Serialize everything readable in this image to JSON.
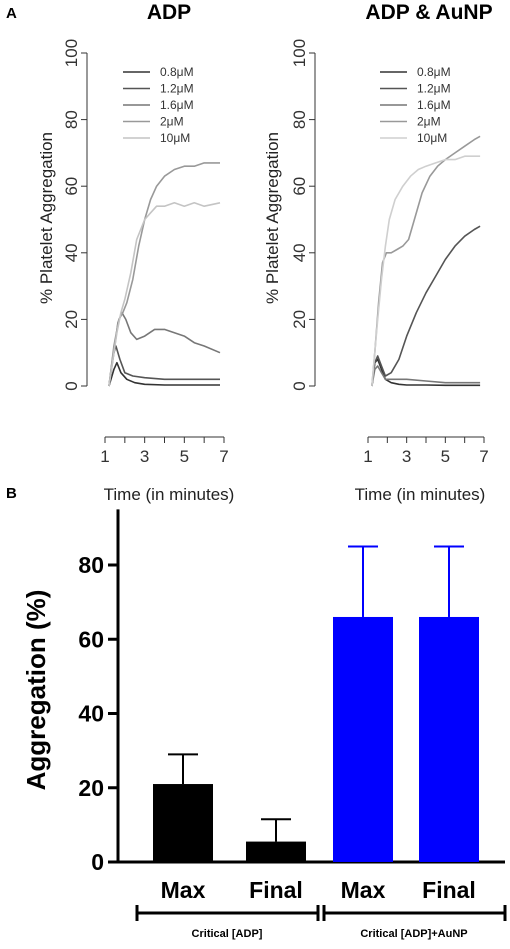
{
  "panels": {
    "a": "A",
    "b": "B"
  },
  "chart_data": [
    {
      "type": "line",
      "title": "ADP",
      "xlabel": "Time (in minutes)",
      "ylabel": "% Platelet Aggregation",
      "xlim": [
        1,
        7
      ],
      "ylim": [
        0,
        100
      ],
      "xticks": [
        "1",
        "3",
        "5",
        "7"
      ],
      "yticks": [
        "0",
        "20",
        "40",
        "60",
        "80",
        "100"
      ],
      "legend_position": "top-left",
      "series": [
        {
          "name": "0.8μM",
          "color": "#333333",
          "x": [
            1.2,
            1.45,
            1.6,
            1.8,
            2.1,
            2.5,
            3,
            4,
            5,
            6,
            6.8
          ],
          "y": [
            0,
            5,
            7,
            4,
            2,
            1,
            0.5,
            0.3,
            0.3,
            0.3,
            0.3
          ]
        },
        {
          "name": "1.2μM",
          "color": "#555555",
          "x": [
            1.2,
            1.4,
            1.55,
            1.75,
            2,
            2.4,
            3,
            4,
            5,
            6,
            6.8
          ],
          "y": [
            0,
            9,
            12,
            8,
            4,
            3,
            2.5,
            2,
            2,
            2,
            2
          ]
        },
        {
          "name": "1.6μM",
          "color": "#777777",
          "x": [
            1.2,
            1.45,
            1.65,
            1.85,
            2.05,
            2.3,
            2.6,
            3,
            3.5,
            4,
            4.5,
            5,
            5.5,
            6,
            6.8
          ],
          "y": [
            0,
            10,
            19,
            22,
            20,
            16,
            14,
            15,
            17,
            17,
            16,
            15,
            13,
            12,
            10
          ]
        },
        {
          "name": "2μM",
          "color": "#999999",
          "x": [
            1.2,
            1.45,
            1.7,
            1.9,
            2.1,
            2.4,
            2.7,
            3,
            3.3,
            3.6,
            4,
            4.5,
            5,
            5.5,
            6,
            6.8
          ],
          "y": [
            0,
            12,
            20,
            22,
            25,
            32,
            42,
            50,
            56,
            60,
            63,
            65,
            66,
            66,
            67,
            67
          ]
        },
        {
          "name": "10μM",
          "color": "#c4c4c4",
          "x": [
            1.2,
            1.4,
            1.6,
            1.8,
            2,
            2.3,
            2.6,
            3,
            3.3,
            3.6,
            4,
            4.5,
            5,
            5.5,
            6,
            6.8
          ],
          "y": [
            0,
            8,
            16,
            22,
            26,
            34,
            44,
            50,
            52,
            54,
            54,
            55,
            54,
            55,
            54,
            55
          ]
        }
      ]
    },
    {
      "type": "line",
      "title": "ADP & AuNP",
      "xlabel": "Time (in minutes)",
      "ylabel": "% Platelet Aggregation",
      "xlim": [
        1,
        7
      ],
      "ylim": [
        0,
        100
      ],
      "xticks": [
        "1",
        "3",
        "5",
        "7"
      ],
      "yticks": [
        "0",
        "20",
        "40",
        "60",
        "80",
        "100"
      ],
      "legend_position": "top-left",
      "series": [
        {
          "name": "0.8μM",
          "color": "#333333",
          "x": [
            1.2,
            1.35,
            1.5,
            1.7,
            1.9,
            2.2,
            2.6,
            3,
            4,
            5,
            6,
            6.8
          ],
          "y": [
            0,
            7,
            8,
            5,
            2,
            1,
            0.5,
            0.3,
            0.3,
            0.2,
            0.2,
            0.2
          ]
        },
        {
          "name": "1.2μM",
          "color": "#555555",
          "x": [
            1.2,
            1.35,
            1.5,
            1.7,
            1.9,
            2.2,
            2.6,
            3,
            3.5,
            4,
            4.5,
            5,
            5.5,
            6,
            6.5,
            6.8
          ],
          "y": [
            0,
            7,
            9,
            6,
            3,
            4,
            8,
            15,
            22,
            28,
            33,
            38,
            42,
            45,
            47,
            48
          ]
        },
        {
          "name": "1.6μM",
          "color": "#777777",
          "x": [
            1.2,
            1.35,
            1.5,
            1.7,
            1.9,
            2.2,
            2.6,
            3,
            4,
            5,
            6,
            6.8
          ],
          "y": [
            0,
            5,
            6,
            4,
            2,
            2,
            2,
            2,
            1.5,
            1,
            1,
            1
          ]
        },
        {
          "name": "2μM",
          "color": "#999999",
          "x": [
            1.2,
            1.35,
            1.55,
            1.75,
            1.95,
            2.2,
            2.5,
            2.8,
            3.1,
            3.4,
            3.8,
            4.2,
            4.6,
            5,
            5.5,
            6,
            6.5,
            6.8
          ],
          "y": [
            0,
            10,
            25,
            37,
            40,
            40,
            41,
            42,
            44,
            50,
            58,
            63,
            66,
            68,
            70,
            72,
            74,
            75
          ]
        },
        {
          "name": "10μM",
          "color": "#cfcfcf",
          "x": [
            1.2,
            1.35,
            1.5,
            1.7,
            1.9,
            2.1,
            2.4,
            2.8,
            3.2,
            3.6,
            4,
            4.5,
            5,
            5.5,
            6,
            6.8
          ],
          "y": [
            0,
            10,
            20,
            32,
            42,
            50,
            56,
            60,
            63,
            65,
            66,
            67,
            68,
            68,
            69,
            69
          ]
        }
      ]
    },
    {
      "type": "bar",
      "ylabel": "Aggregation (%)",
      "ylim": [
        0,
        95
      ],
      "yticks": [
        "0",
        "20",
        "40",
        "60",
        "80"
      ],
      "categories": [
        "Max",
        "Final",
        "Max",
        "Final"
      ],
      "groups": [
        "Critical [ADP]",
        "Critical [ADP]+AuNP"
      ],
      "values": [
        21,
        5.5,
        66,
        66
      ],
      "errors": [
        8,
        6,
        19,
        19
      ],
      "colors": [
        "#000000",
        "#000000",
        "#0000ff",
        "#0000ff"
      ]
    }
  ]
}
